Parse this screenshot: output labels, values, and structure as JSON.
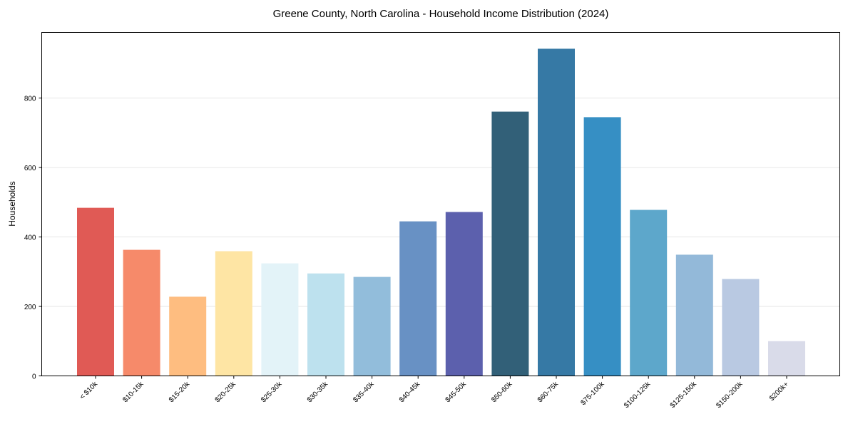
{
  "chart_data": {
    "type": "bar",
    "title": "Greene County, North Carolina - Household Income Distribution (2024)",
    "xlabel": "",
    "ylabel": "Households",
    "ylim": [
      0,
      989
    ],
    "yticks": [
      0,
      200,
      400,
      600,
      800
    ],
    "grid": true,
    "categories": [
      "< $10k",
      "$10-15k",
      "$15-20k",
      "$20-25k",
      "$25-30k",
      "$30-35k",
      "$35-40k",
      "$40-45k",
      "$45-50k",
      "$50-60k",
      "$60-75k",
      "$75-100k",
      "$100-125k",
      "$125-150k",
      "$150-200k",
      "$200k+"
    ],
    "values": [
      484,
      363,
      228,
      359,
      324,
      295,
      285,
      445,
      472,
      761,
      942,
      745,
      478,
      349,
      279,
      100
    ],
    "colors": [
      "#e05a55",
      "#f68a6a",
      "#febd80",
      "#fee5a4",
      "#e3f3f8",
      "#bde1ee",
      "#92bddb",
      "#6891c4",
      "#5c60ad",
      "#326078",
      "#3679a5",
      "#368fc4",
      "#5da7cb",
      "#93b9d9",
      "#b9c9e2",
      "#d9dbe9"
    ]
  }
}
